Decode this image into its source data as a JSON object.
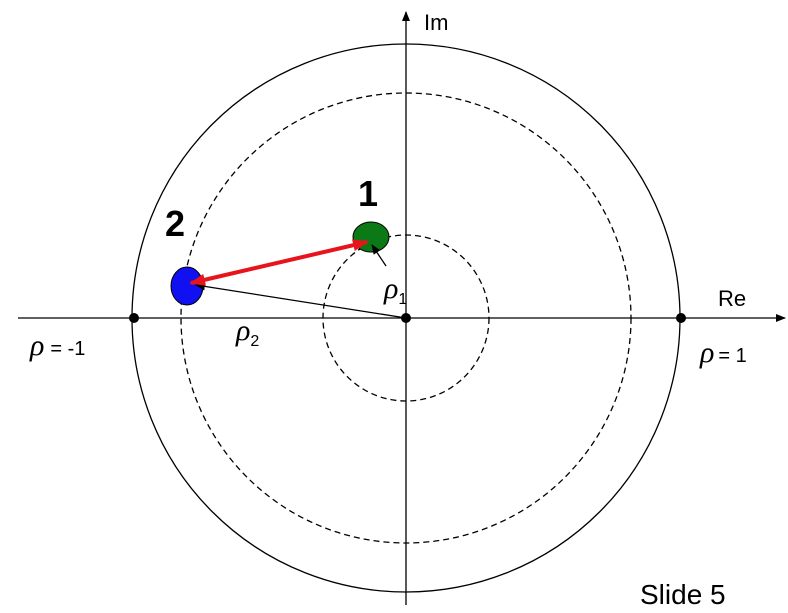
{
  "axes": {
    "imaginary": "Im",
    "real": "Re"
  },
  "points": [
    {
      "label": "1"
    },
    {
      "label": "2"
    }
  ],
  "reflections": [
    {
      "symbol": "ρ",
      "subscript": "1"
    },
    {
      "symbol": "ρ",
      "subscript": "2"
    }
  ],
  "markers": [
    {
      "symbol": "ρ",
      "text": "= -1"
    },
    {
      "symbol": "ρ",
      "text": "= 1"
    }
  ],
  "footer": "Slide 5"
}
